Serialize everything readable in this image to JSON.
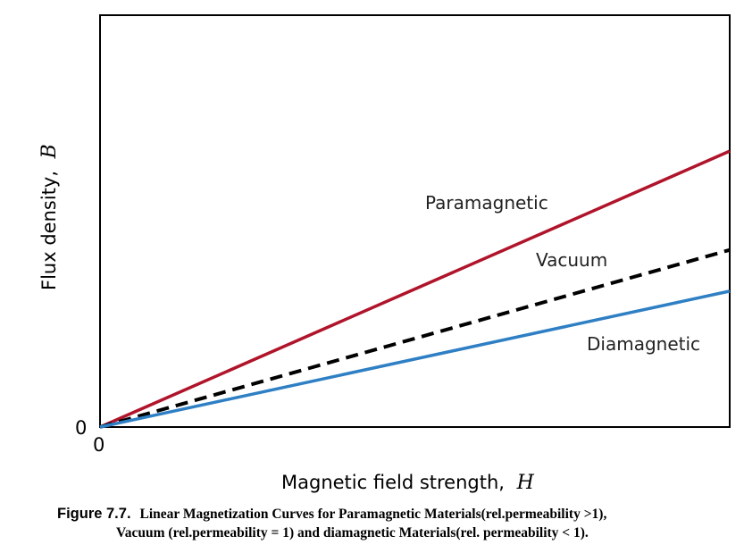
{
  "chart_data": {
    "type": "line",
    "xlabel": "Magnetic field strength,",
    "xlabel_var": "H",
    "ylabel": "Flux density,",
    "ylabel_var": "B",
    "x_origin_label": "0",
    "y_origin_label": "0",
    "xlim": [
      0,
      1
    ],
    "ylim": [
      0,
      1
    ],
    "grid": false,
    "series": [
      {
        "name": "Paramagnetic",
        "x": [
          0,
          1
        ],
        "y": [
          0,
          0.67
        ],
        "color": "#b0142a",
        "style": "solid"
      },
      {
        "name": "Vacuum",
        "x": [
          0,
          1
        ],
        "y": [
          0,
          0.43
        ],
        "color": "#000000",
        "style": "dashed"
      },
      {
        "name": "Diamagnetic",
        "x": [
          0,
          1
        ],
        "y": [
          0,
          0.33
        ],
        "color": "#2e7fc4",
        "style": "solid"
      }
    ]
  },
  "caption": {
    "label": "Figure 7.7.",
    "line1": "Linear Magnetization Curves for Paramagnetic Materials(rel.permeability >1),",
    "line2": "Vacuum (rel.permeability = 1) and diamagnetic Materials(rel. permeability < 1)."
  }
}
